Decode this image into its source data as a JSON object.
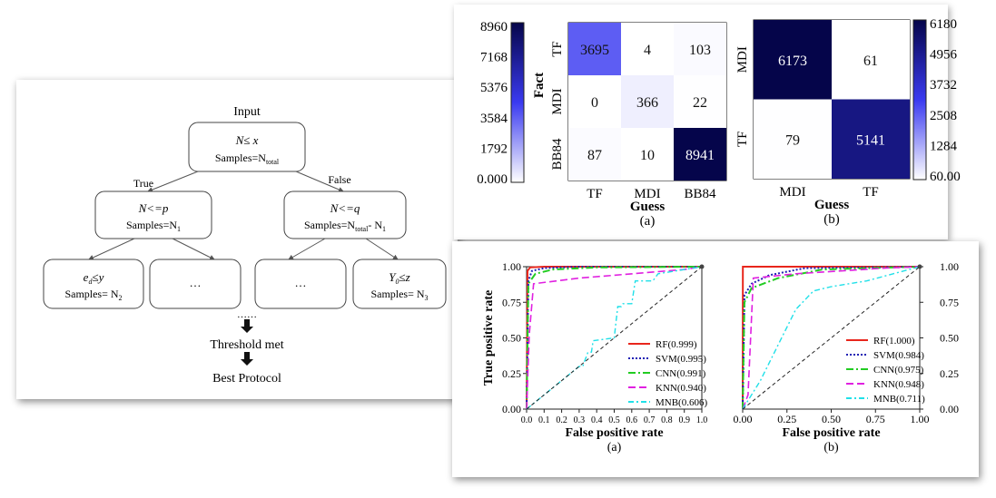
{
  "tree": {
    "input_label": "Input",
    "root": {
      "line1": "N≤ x",
      "line2": "Samples=N",
      "line2_sub": "total"
    },
    "true_label": "True",
    "false_label": "False",
    "left": {
      "line1": "N<=p",
      "line2": "Samples=N",
      "line2_sub": "1"
    },
    "right": {
      "line1": "N<=q",
      "line2": "Samples=N",
      "line2_sub": "total",
      "line2_tail": "- N",
      "line2_tail_sub": "1"
    },
    "leaf1": {
      "line1": "e",
      "line1_sub": "d",
      "line1_tail": "≤y",
      "line2": "Samples= N",
      "line2_sub": "2"
    },
    "leaf2": {
      "text": "…"
    },
    "leaf3": {
      "text": "…"
    },
    "leaf4": {
      "line1": "Y",
      "line1_sub": "0",
      "line1_tail": "≤z",
      "line2": "Samples= N",
      "line2_sub": "3"
    },
    "dots": "……",
    "threshold": "Threshold met",
    "best": "Best Protocol"
  },
  "colors": {
    "low": "#ffffff",
    "mid": "#3a3af0",
    "high": "#05054a",
    "rf": "#e8261c",
    "svm": "#1f1fb4",
    "cnn": "#22cc22",
    "knn": "#e020e0",
    "mnb": "#20e0e8"
  },
  "chart_data": [
    {
      "type": "heatmap",
      "panel_label": "(a)",
      "xlabel": "Guess",
      "ylabel": "Fact",
      "rows": [
        "TF",
        "MDI",
        "BB84"
      ],
      "cols": [
        "TF",
        "MDI",
        "BB84"
      ],
      "values": [
        [
          3695,
          4,
          103
        ],
        [
          0,
          366,
          22
        ],
        [
          87,
          10,
          8941
        ]
      ],
      "colorbar_ticks": [
        "8960",
        "7168",
        "5376",
        "3584",
        "1792",
        "0.000"
      ],
      "colorbar_range": [
        0,
        8960
      ]
    },
    {
      "type": "heatmap",
      "panel_label": "(b)",
      "xlabel": "Guess",
      "rows": [
        "MDI",
        "TF"
      ],
      "cols": [
        "MDI",
        "TF"
      ],
      "values": [
        [
          6173,
          61
        ],
        [
          79,
          5141
        ]
      ],
      "colorbar_ticks": [
        "6180",
        "4956",
        "3732",
        "2508",
        "1284",
        "60.00"
      ],
      "colorbar_range": [
        60,
        6180
      ]
    },
    {
      "type": "line",
      "panel_label": "(a)",
      "xlabel": "False positive rate",
      "ylabel": "True positive rate",
      "xlim": [
        0,
        1
      ],
      "ylim": [
        0,
        1
      ],
      "xticks": [
        "0.0",
        "0.1",
        "0.2",
        "0.3",
        "0.4",
        "0.5",
        "0.6",
        "0.7",
        "0.8",
        "0.9",
        "1.0"
      ],
      "yticks": [
        "0.00",
        "0.25",
        "0.50",
        "0.75",
        "1.00"
      ],
      "series": [
        {
          "name": "RF(0.999)",
          "x": [
            0,
            0.005,
            0.02,
            0.1,
            1.0
          ],
          "y": [
            0,
            0.97,
            0.995,
            1.0,
            1.0
          ]
        },
        {
          "name": "SVM(0.995)",
          "x": [
            0,
            0.01,
            0.03,
            0.1,
            0.3,
            1.0
          ],
          "y": [
            0,
            0.9,
            0.97,
            0.99,
            1.0,
            1.0
          ]
        },
        {
          "name": "CNN(0.991)",
          "x": [
            0,
            0.01,
            0.05,
            0.15,
            0.4,
            1.0
          ],
          "y": [
            0,
            0.88,
            0.95,
            0.98,
            0.995,
            1.0
          ]
        },
        {
          "name": "KNN(0.940)",
          "x": [
            0,
            0.015,
            0.04,
            0.3,
            0.9,
            1.0
          ],
          "y": [
            0,
            0.52,
            0.88,
            0.92,
            0.98,
            1.0
          ]
        },
        {
          "name": "MNB(0.606)",
          "x": [
            0,
            0.3,
            0.32,
            0.35,
            0.37,
            0.38,
            0.5,
            0.52,
            0.54,
            0.55,
            0.6,
            0.62,
            0.72,
            0.75,
            1.0
          ],
          "y": [
            0,
            0.3,
            0.3,
            0.4,
            0.4,
            0.48,
            0.5,
            0.72,
            0.72,
            0.74,
            0.74,
            0.9,
            0.9,
            0.95,
            1.0
          ]
        },
        {
          "name": "",
          "x": [
            0,
            1
          ],
          "y": [
            0,
            1
          ]
        }
      ]
    },
    {
      "type": "line",
      "panel_label": "(b)",
      "xlabel": "False positive rate",
      "xlim": [
        0,
        1
      ],
      "ylim": [
        0,
        1
      ],
      "xticks": [
        "0.00",
        "0.25",
        "0.50",
        "0.75",
        "1.00"
      ],
      "yticks": [
        "0.00",
        "0.25",
        "0.50",
        "0.75",
        "1.00"
      ],
      "series": [
        {
          "name": "RF(1.000)",
          "x": [
            0,
            0.001,
            1.0
          ],
          "y": [
            0,
            1.0,
            1.0
          ]
        },
        {
          "name": "SVM(0.984)",
          "x": [
            0,
            0.01,
            0.05,
            0.15,
            0.35,
            1.0
          ],
          "y": [
            0,
            0.8,
            0.88,
            0.94,
            0.99,
            1.0
          ]
        },
        {
          "name": "CNN(0.975)",
          "x": [
            0,
            0.01,
            0.05,
            0.2,
            0.45,
            1.0
          ],
          "y": [
            0,
            0.75,
            0.85,
            0.92,
            0.98,
            1.0
          ]
        },
        {
          "name": "KNN(0.948)",
          "x": [
            0,
            0.03,
            0.06,
            0.3,
            0.8,
            1.0
          ],
          "y": [
            0,
            0.1,
            0.92,
            0.95,
            0.99,
            1.0
          ]
        },
        {
          "name": "MNB(0.711)",
          "x": [
            0,
            0.1,
            0.2,
            0.3,
            0.4,
            0.5,
            0.7,
            0.85,
            1.0
          ],
          "y": [
            0,
            0.2,
            0.45,
            0.7,
            0.83,
            0.86,
            0.9,
            0.95,
            1.0
          ]
        },
        {
          "name": "",
          "x": [
            0,
            1
          ],
          "y": [
            0,
            1
          ]
        }
      ]
    }
  ]
}
